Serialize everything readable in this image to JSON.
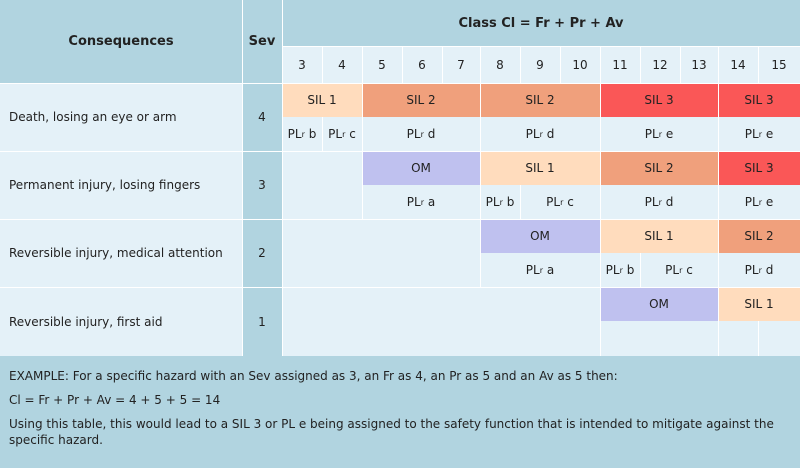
{
  "header": {
    "consequences": "Consequences",
    "sev": "Sev",
    "class": "Class Cl = Fr + Pr + Av",
    "columns": [
      "3",
      "4",
      "5",
      "6",
      "7",
      "8",
      "9",
      "10",
      "11",
      "12",
      "13",
      "14",
      "15"
    ]
  },
  "rows": [
    {
      "consequence": "Death, losing an eye or arm",
      "sev": "4",
      "sil": [
        "SIL 1",
        "SIL 2",
        "SIL 2",
        "SIL 3",
        "SIL 3"
      ],
      "pl": [
        "b",
        "c",
        "d",
        "d",
        "e",
        "e"
      ]
    },
    {
      "consequence": "Permanent injury, losing fingers",
      "sev": "3",
      "sil": [
        "OM",
        "SIL 1",
        "SIL 2",
        "SIL 3"
      ],
      "pl": [
        "a",
        "b",
        "c",
        "d",
        "e"
      ]
    },
    {
      "consequence": "Reversible injury, medical attention",
      "sev": "2",
      "sil": [
        "OM",
        "SIL 1",
        "SIL 2"
      ],
      "pl": [
        "a",
        "b",
        "c",
        "d"
      ]
    },
    {
      "consequence": "Reversible injury, first aid",
      "sev": "1",
      "sil": [
        "OM",
        "SIL 1"
      ],
      "pl": []
    }
  ],
  "pl_prefix": "PL",
  "pl_sub": "r",
  "footer": {
    "example": "EXAMPLE: For a specific hazard with an Sev assigned as 3, an Fr as 4, an Pr as 5 and an Av as 5 then:",
    "formula": "Cl = Fr + Pr + Av = 4 + 5 + 5 = 14",
    "note": "Using this table, this would lead to a SIL 3 or PL e being assigned to the safety function that is intended to mitigate against the specific hazard."
  },
  "colors": {
    "header": "#b1d4e0",
    "cell": "#e4f1f8",
    "sil1": "#ffdcbd",
    "sil2": "#f0a07c",
    "sil3": "#fa5757",
    "om": "#bfc1ef",
    "grid": "#ffffff"
  }
}
